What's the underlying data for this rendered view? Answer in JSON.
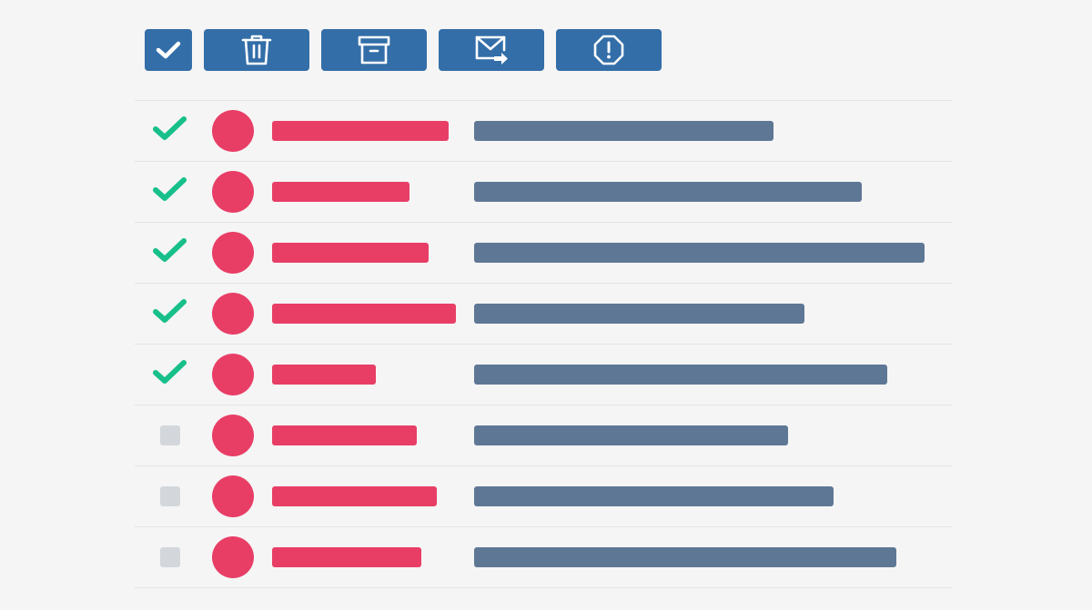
{
  "colors": {
    "background": "#f5f5f5",
    "toolbar_button": "#336ea8",
    "toolbar_icon": "#ffffff",
    "check_mark": "#17bf8a",
    "checkbox_empty": "#d3d7db",
    "avatar": "#e83e66",
    "sender_bar": "#e83e66",
    "subject_bar": "#5e7795",
    "divider": "#e4e4e4"
  },
  "toolbar": {
    "buttons": [
      {
        "id": "btn-select-all",
        "name": "select-all-button",
        "icon": "check-icon"
      },
      {
        "id": "btn-delete",
        "name": "delete-button",
        "icon": "trash-icon"
      },
      {
        "id": "btn-archive",
        "name": "archive-button",
        "icon": "archive-icon"
      },
      {
        "id": "btn-move",
        "name": "move-to-button",
        "icon": "mail-forward-icon"
      },
      {
        "id": "btn-spam",
        "name": "report-spam-button",
        "icon": "alert-octagon-icon"
      }
    ]
  },
  "messages": [
    {
      "selected": true
    },
    {
      "selected": true
    },
    {
      "selected": true
    },
    {
      "selected": true
    },
    {
      "selected": true
    },
    {
      "selected": false
    },
    {
      "selected": false
    },
    {
      "selected": false
    }
  ]
}
